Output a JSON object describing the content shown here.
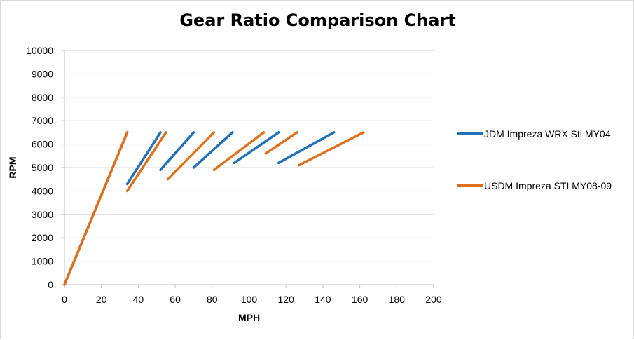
{
  "chart_data": {
    "type": "line",
    "title": "Gear Ratio Comparison Chart",
    "xlabel": "MPH",
    "ylabel": "RPM",
    "xlim": [
      0,
      200
    ],
    "ylim": [
      0,
      10000
    ],
    "xticks": [
      0,
      20,
      40,
      60,
      80,
      100,
      120,
      140,
      160,
      180,
      200
    ],
    "yticks": [
      0,
      1000,
      2000,
      3000,
      4000,
      5000,
      6000,
      7000,
      8000,
      9000,
      10000
    ],
    "grid": "horizontal",
    "legend_position": "right",
    "series": [
      {
        "name": "JDM Impreza WRX Sti MY04",
        "color": "#2170b8",
        "segments": [
          [
            [
              0,
              0
            ],
            [
              34,
              6500
            ]
          ],
          [
            [
              34,
              4300
            ],
            [
              52,
              6500
            ]
          ],
          [
            [
              52,
              4900
            ],
            [
              70,
              6500
            ]
          ],
          [
            [
              70,
              5000
            ],
            [
              91,
              6500
            ]
          ],
          [
            [
              92,
              5200
            ],
            [
              116,
              6500
            ]
          ],
          [
            [
              116,
              5200
            ],
            [
              146,
              6500
            ]
          ]
        ]
      },
      {
        "name": "USDM Impreza STI MY08-09",
        "color": "#e0711c",
        "segments": [
          [
            [
              0,
              0
            ],
            [
              34,
              6500
            ]
          ],
          [
            [
              34,
              4000
            ],
            [
              55,
              6500
            ]
          ],
          [
            [
              56,
              4500
            ],
            [
              81,
              6500
            ]
          ],
          [
            [
              81,
              4900
            ],
            [
              108,
              6500
            ]
          ],
          [
            [
              109,
              5600
            ],
            [
              126,
              6500
            ]
          ],
          [
            [
              127,
              5100
            ],
            [
              162,
              6500
            ]
          ]
        ]
      }
    ]
  }
}
